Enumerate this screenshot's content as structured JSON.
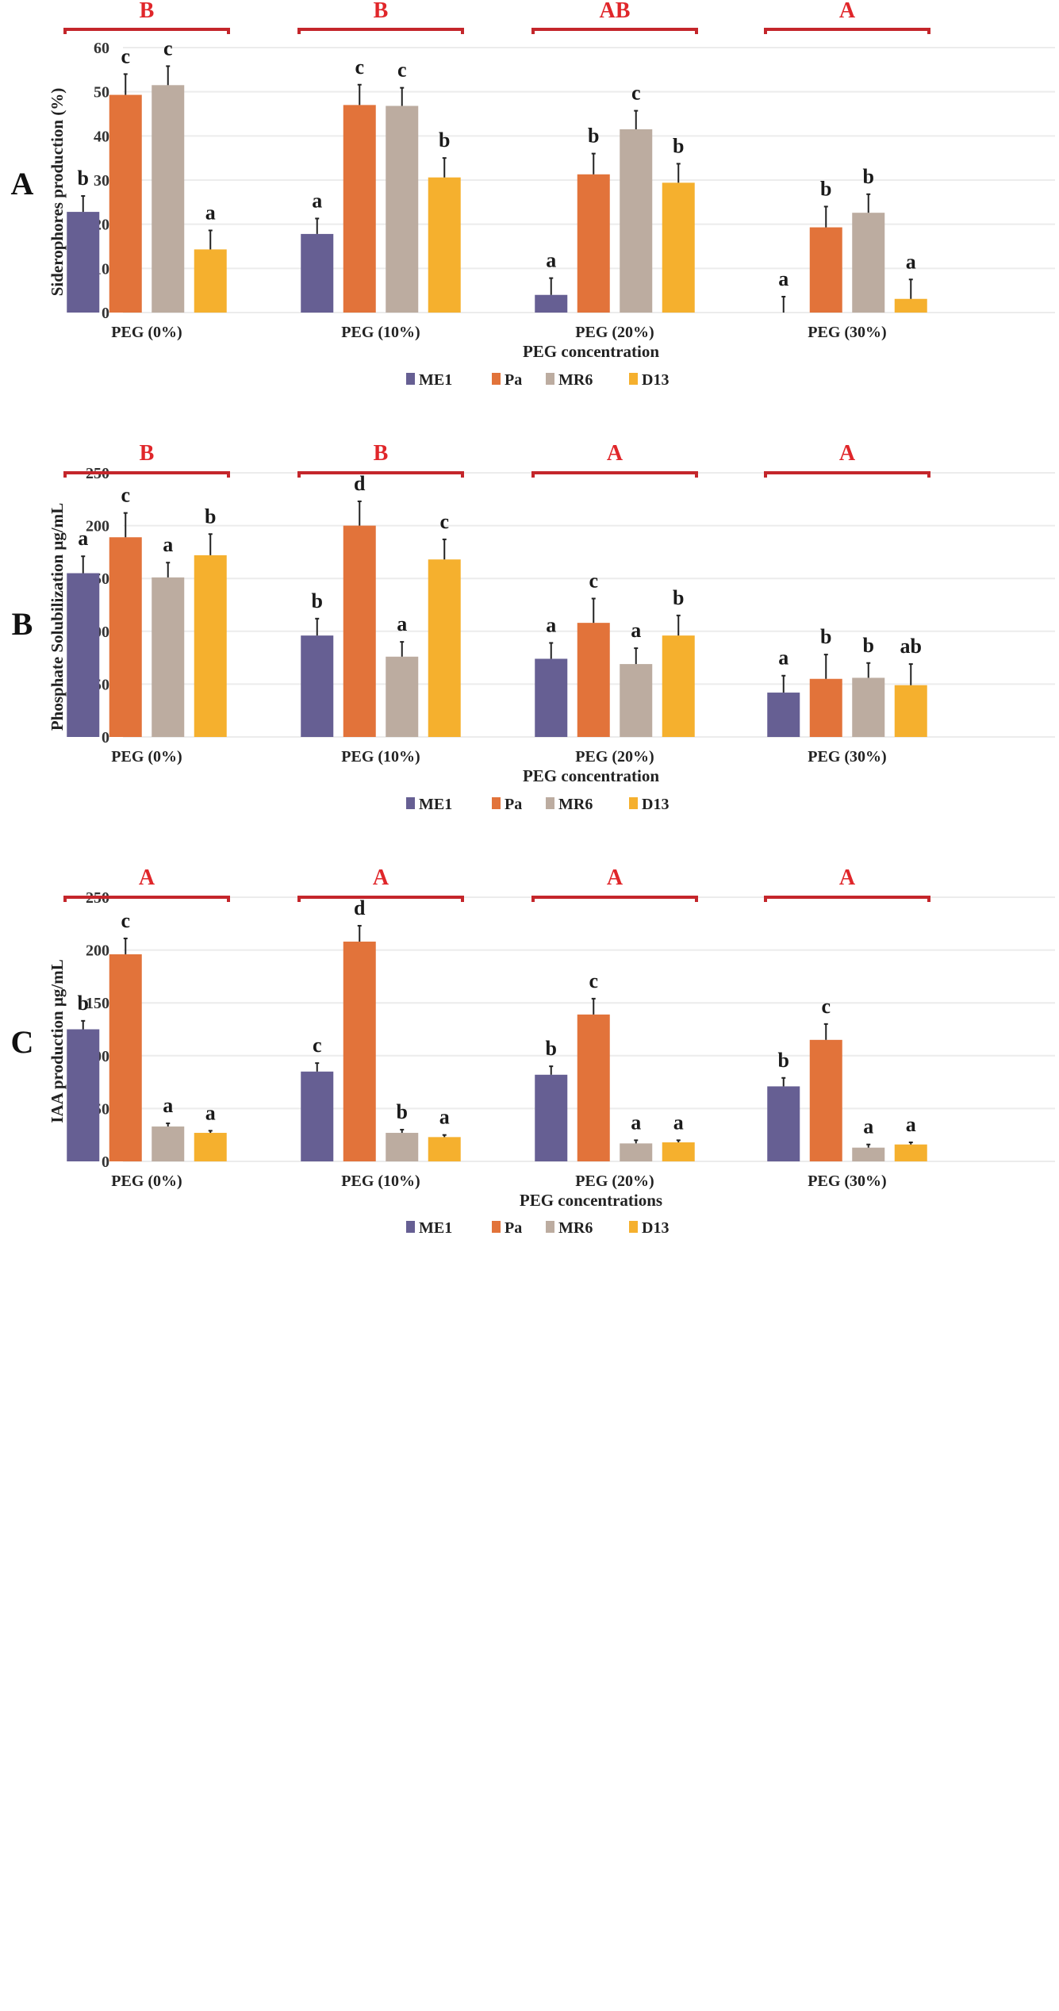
{
  "colors": {
    "ME1": "#665f93",
    "Pa": "#e2733a",
    "MR6": "#bcaca0",
    "D13": "#f5b02e",
    "group_bracket": "#c4262b",
    "group_label": "#e0262a",
    "error_bar": "#222222",
    "gridline": "#ececec"
  },
  "chart_data": [
    {
      "panel": "A",
      "type": "bar",
      "title": "",
      "ylabel": "Siderophores production (%)",
      "xlabel": "PEG concentration",
      "ylim": [
        0,
        60
      ],
      "yticks": [
        0,
        10,
        20,
        30,
        40,
        50,
        60
      ],
      "grid": true,
      "legend_position": "bottom",
      "categories": [
        "PEG (0%)",
        "PEG (10%)",
        "PEG (20%)",
        "PEG (30%)"
      ],
      "group_letters": [
        "B",
        "B",
        "AB",
        "A"
      ],
      "series": [
        {
          "name": "ME1",
          "values": [
            22.8,
            17.8,
            4.0,
            0.0
          ],
          "errors": [
            3.6,
            3.5,
            3.8,
            3.6
          ],
          "letters": [
            "b",
            "a",
            "a",
            "a"
          ]
        },
        {
          "name": "Pa",
          "values": [
            49.3,
            47.0,
            31.3,
            19.3
          ],
          "errors": [
            4.7,
            4.6,
            4.7,
            4.7
          ],
          "letters": [
            "c",
            "c",
            "b",
            "b"
          ]
        },
        {
          "name": "MR6",
          "values": [
            51.5,
            46.8,
            41.5,
            22.6
          ],
          "errors": [
            4.3,
            4.1,
            4.2,
            4.2
          ],
          "letters": [
            "c",
            "c",
            "c",
            "b"
          ]
        },
        {
          "name": "D13",
          "values": [
            14.3,
            30.6,
            29.4,
            3.1
          ],
          "errors": [
            4.3,
            4.4,
            4.3,
            4.4
          ],
          "letters": [
            "a",
            "b",
            "b",
            "a"
          ]
        }
      ]
    },
    {
      "panel": "B",
      "type": "bar",
      "title": "",
      "ylabel": "Phosphate Solubilization μg/mL",
      "xlabel": "PEG concentration",
      "ylim": [
        0,
        250
      ],
      "yticks": [
        0,
        50,
        100,
        150,
        200,
        250
      ],
      "grid": true,
      "legend_position": "bottom",
      "categories": [
        "PEG (0%)",
        "PEG (10%)",
        "PEG (20%)",
        "PEG (30%)"
      ],
      "group_letters": [
        "B",
        "B",
        "A",
        "A"
      ],
      "series": [
        {
          "name": "ME1",
          "values": [
            155,
            96,
            74,
            42
          ],
          "errors": [
            16,
            16,
            15,
            16
          ],
          "letters": [
            "a",
            "b",
            "a",
            "a"
          ]
        },
        {
          "name": "Pa",
          "values": [
            189,
            200,
            108,
            55
          ],
          "errors": [
            23,
            23,
            23,
            23
          ],
          "letters": [
            "c",
            "d",
            "c",
            "b"
          ]
        },
        {
          "name": "MR6",
          "values": [
            151,
            76,
            69,
            56
          ],
          "errors": [
            14,
            14,
            15,
            14
          ],
          "letters": [
            "a",
            "a",
            "a",
            "b"
          ]
        },
        {
          "name": "D13",
          "values": [
            172,
            168,
            96,
            49
          ],
          "errors": [
            20,
            19,
            19,
            20
          ],
          "letters": [
            "b",
            "c",
            "b",
            "ab"
          ]
        }
      ]
    },
    {
      "panel": "C",
      "type": "bar",
      "title": "",
      "ylabel": "IAA production μg/mL",
      "xlabel": "PEG concentrations",
      "ylim": [
        0,
        250
      ],
      "yticks": [
        0,
        50,
        100,
        150,
        200,
        250
      ],
      "grid": true,
      "legend_position": "bottom",
      "categories": [
        "PEG (0%)",
        "PEG (10%)",
        "PEG (20%)",
        "PEG (30%)"
      ],
      "group_letters": [
        "A",
        "A",
        "A",
        "A"
      ],
      "series": [
        {
          "name": "ME1",
          "values": [
            125,
            85,
            82,
            71
          ],
          "errors": [
            8,
            8,
            8,
            8
          ],
          "letters": [
            "b",
            "c",
            "b",
            "b"
          ]
        },
        {
          "name": "Pa",
          "values": [
            196,
            208,
            139,
            115
          ],
          "errors": [
            15,
            15,
            15,
            15
          ],
          "letters": [
            "c",
            "d",
            "c",
            "c"
          ]
        },
        {
          "name": "MR6",
          "values": [
            33,
            27,
            17,
            13
          ],
          "errors": [
            3,
            3,
            3,
            3
          ],
          "letters": [
            "a",
            "b",
            "a",
            "a"
          ]
        },
        {
          "name": "D13",
          "values": [
            27,
            23,
            18,
            16
          ],
          "errors": [
            2,
            2,
            2,
            2
          ],
          "letters": [
            "a",
            "a",
            "a",
            "a"
          ]
        }
      ]
    }
  ]
}
